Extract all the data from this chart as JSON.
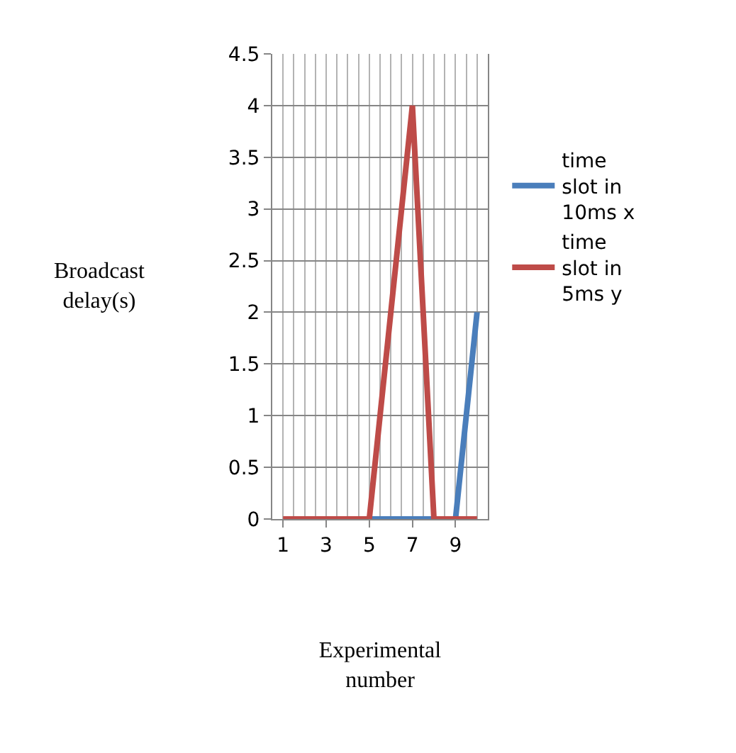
{
  "chart_data": {
    "type": "line",
    "xlabel": "Experimental number",
    "ylabel": "Broadcast delay(s)",
    "categories": [
      "1",
      null,
      "3",
      null,
      "5",
      null,
      "7",
      null,
      "9",
      null
    ],
    "series": [
      {
        "name": "time slot in 10ms x",
        "color": "#4a7ebb",
        "values": [
          null,
          null,
          null,
          null,
          0,
          0,
          0,
          0,
          0,
          2
        ]
      },
      {
        "name": "time slot in 5ms y",
        "color": "#be4b48",
        "values": [
          0,
          0,
          0,
          0,
          0,
          2,
          4,
          0,
          0,
          0
        ]
      }
    ],
    "ylim": [
      0,
      4.5
    ],
    "yticks": [
      0,
      0.5,
      1,
      1.5,
      2,
      2.5,
      3,
      3.5,
      4,
      4.5
    ],
    "grid": true,
    "legend": "right",
    "marker": "none",
    "line_style": "solid"
  }
}
